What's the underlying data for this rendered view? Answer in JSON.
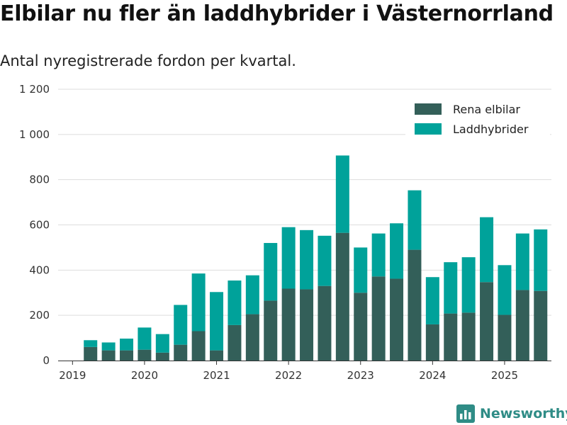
{
  "header": {
    "title": "Elbilar nu fler än laddhybrider i Västernorrland",
    "subtitle": "Antal nyregistrerade fordon per kvartal."
  },
  "colors": {
    "rena_elbilar": "#335f59",
    "laddhybrider": "#00a29a",
    "grid": "#dddddd",
    "axis": "#333333",
    "brand": "#2f8c86"
  },
  "brand": {
    "name": "Newsworthy",
    "icon": "bar-chart-icon"
  },
  "chart_data": {
    "type": "bar",
    "stacked": true,
    "title": "Elbilar nu fler än laddhybrider i Västernorrland",
    "subtitle": "Antal nyregistrerade fordon per kvartal.",
    "xlabel": "",
    "ylabel": "",
    "ylim": [
      0,
      1200
    ],
    "yticks": [
      0,
      200,
      400,
      600,
      800,
      1000,
      1200
    ],
    "ytick_labels": [
      "0",
      "200",
      "400",
      "600",
      "800",
      "1 000",
      "1 200"
    ],
    "xtick_labels": [
      "2019",
      "2020",
      "2021",
      "2022",
      "2023",
      "2024",
      "2025"
    ],
    "xtick_positions": [
      2019.0,
      2020.0,
      2021.0,
      2022.0,
      2023.0,
      2024.0,
      2025.0
    ],
    "grid": true,
    "legend": "top-right",
    "categories": [
      "2019 Q2",
      "2019 Q3",
      "2019 Q4",
      "2020 Q1",
      "2020 Q2",
      "2020 Q3",
      "2020 Q4",
      "2021 Q1",
      "2021 Q2",
      "2021 Q3",
      "2021 Q4",
      "2022 Q1",
      "2022 Q2",
      "2022 Q3",
      "2022 Q4",
      "2023 Q1",
      "2023 Q2",
      "2023 Q3",
      "2023 Q4",
      "2024 Q1",
      "2024 Q2",
      "2024 Q3",
      "2024 Q4",
      "2025 Q1",
      "2025 Q2",
      "2025 Q3"
    ],
    "x": [
      2019.25,
      2019.5,
      2019.75,
      2020.0,
      2020.25,
      2020.5,
      2020.75,
      2021.0,
      2021.25,
      2021.5,
      2021.75,
      2022.0,
      2022.25,
      2022.5,
      2022.75,
      2023.0,
      2023.25,
      2023.5,
      2023.75,
      2024.0,
      2024.25,
      2024.5,
      2024.75,
      2025.0,
      2025.25,
      2025.5
    ],
    "series": [
      {
        "name": "Rena elbilar",
        "values": [
          60,
          45,
          45,
          48,
          35,
          70,
          130,
          45,
          157,
          205,
          265,
          318,
          315,
          330,
          565,
          300,
          372,
          362,
          490,
          160,
          208,
          212,
          347,
          202,
          312,
          308
        ]
      },
      {
        "name": "Laddhybrider",
        "values": [
          30,
          35,
          52,
          98,
          82,
          176,
          255,
          258,
          197,
          172,
          255,
          272,
          262,
          222,
          342,
          200,
          190,
          245,
          263,
          209,
          227,
          245,
          287,
          220,
          250,
          272
        ]
      }
    ]
  }
}
